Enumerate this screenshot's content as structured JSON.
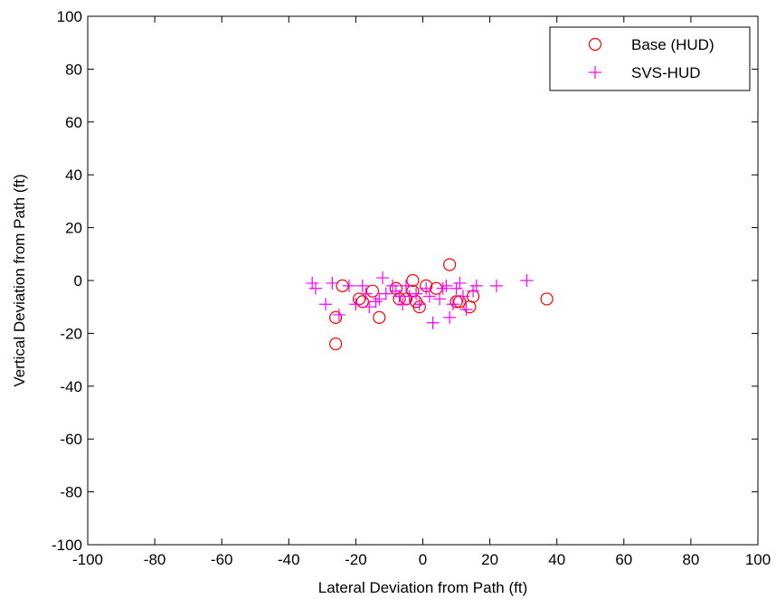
{
  "chart_data": {
    "type": "scatter",
    "title": "",
    "xlabel": "Lateral Deviation from Path (ft)",
    "ylabel": "Vertical Deviation from Path (ft)",
    "xlim": [
      -100,
      100
    ],
    "ylim": [
      -100,
      100
    ],
    "xticks": [
      -100,
      -80,
      -60,
      -40,
      -20,
      0,
      20,
      40,
      60,
      80,
      100
    ],
    "yticks": [
      -100,
      -80,
      -60,
      -40,
      -20,
      0,
      20,
      40,
      60,
      80,
      100
    ],
    "xtick_labels": [
      "-100",
      "-80",
      "-60",
      "-40",
      "-20",
      "0",
      "20",
      "40",
      "60",
      "80",
      "100"
    ],
    "ytick_labels": [
      "-100",
      "-80",
      "-60",
      "-40",
      "-20",
      "0",
      "20",
      "40",
      "60",
      "80",
      "100"
    ],
    "grid": false,
    "legend_position": "top-right",
    "series": [
      {
        "name": "Base (HUD)",
        "marker": "circle",
        "color": "#ff0000",
        "points": [
          [
            -24,
            -2
          ],
          [
            -26,
            -14
          ],
          [
            -26,
            -24
          ],
          [
            -19,
            -7
          ],
          [
            -18,
            -8
          ],
          [
            -15,
            -4
          ],
          [
            -13,
            -14
          ],
          [
            -8,
            -3
          ],
          [
            -7,
            -7
          ],
          [
            -5,
            -7
          ],
          [
            -3,
            -4
          ],
          [
            -3,
            0
          ],
          [
            -2,
            -8
          ],
          [
            -1,
            -10
          ],
          [
            1,
            -2
          ],
          [
            4,
            -3
          ],
          [
            8,
            6
          ],
          [
            10,
            -8
          ],
          [
            11,
            -8
          ],
          [
            14,
            -10
          ],
          [
            15,
            -6
          ],
          [
            37,
            -7
          ]
        ]
      },
      {
        "name": "SVS-HUD",
        "marker": "plus",
        "color": "#ff00ff",
        "points": [
          [
            -33,
            -1
          ],
          [
            -32,
            -3
          ],
          [
            -29,
            -9
          ],
          [
            -27,
            -1
          ],
          [
            -25,
            -13
          ],
          [
            -22,
            -2
          ],
          [
            -20,
            -9
          ],
          [
            -18,
            -2
          ],
          [
            -17,
            -5
          ],
          [
            -16,
            -10
          ],
          [
            -14,
            -8
          ],
          [
            -13,
            -7
          ],
          [
            -12,
            1
          ],
          [
            -11,
            -5
          ],
          [
            -9,
            -2
          ],
          [
            -8,
            -4
          ],
          [
            -7,
            -6
          ],
          [
            -6,
            -9
          ],
          [
            -5,
            -2
          ],
          [
            -4,
            -6
          ],
          [
            -2,
            -5
          ],
          [
            -1,
            -9
          ],
          [
            1,
            -3
          ],
          [
            2,
            -6
          ],
          [
            3,
            -16
          ],
          [
            5,
            -7
          ],
          [
            6,
            -3
          ],
          [
            7,
            -2
          ],
          [
            8,
            -14
          ],
          [
            9,
            -9
          ],
          [
            10,
            -3
          ],
          [
            11,
            -1
          ],
          [
            12,
            -6
          ],
          [
            13,
            -11
          ],
          [
            15,
            -4
          ],
          [
            16,
            -2
          ],
          [
            22,
            -2
          ],
          [
            31,
            0
          ]
        ]
      }
    ]
  }
}
